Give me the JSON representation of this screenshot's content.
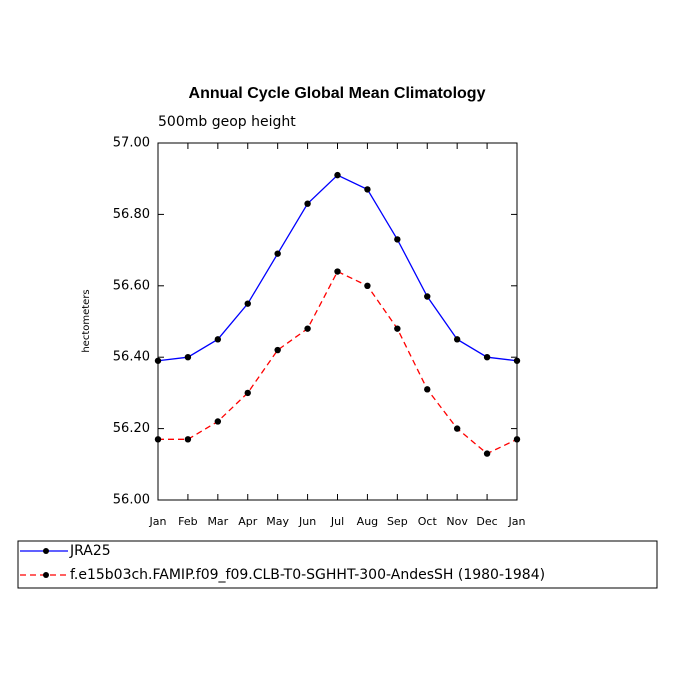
{
  "chart_data": {
    "type": "line",
    "title": "Annual Cycle Global Mean Climatology",
    "subtitle": "500mb geop height",
    "y_label": "hectometers",
    "categories": [
      "Jan",
      "Feb",
      "Mar",
      "Apr",
      "May",
      "Jun",
      "Jul",
      "Aug",
      "Sep",
      "Oct",
      "Nov",
      "Dec",
      "Jan"
    ],
    "series": [
      {
        "name": "JRA25",
        "color": "#0000ff",
        "dash": "solid",
        "values": [
          56.39,
          56.4,
          56.45,
          56.55,
          56.69,
          56.83,
          56.91,
          56.87,
          56.73,
          56.57,
          56.45,
          56.4,
          56.39
        ]
      },
      {
        "name": "f.e15b03ch.FAMIP.f09_f09.CLB-T0-SGHHT-300-AndesSH (1980-1984)",
        "color": "#ff0000",
        "dash": "dashed",
        "values": [
          56.17,
          56.17,
          56.22,
          56.3,
          56.42,
          56.48,
          56.64,
          56.6,
          56.48,
          56.31,
          56.2,
          56.13,
          56.17
        ]
      }
    ],
    "ylim": [
      56.0,
      57.0
    ],
    "yticks": [
      {
        "value": 56.0,
        "label": "56.00"
      },
      {
        "value": 56.2,
        "label": "56.20"
      },
      {
        "value": 56.4,
        "label": "56.40"
      },
      {
        "value": 56.6,
        "label": "56.60"
      },
      {
        "value": 56.8,
        "label": "56.80"
      },
      {
        "value": 57.0,
        "label": "57.00"
      }
    ],
    "grid": false
  }
}
